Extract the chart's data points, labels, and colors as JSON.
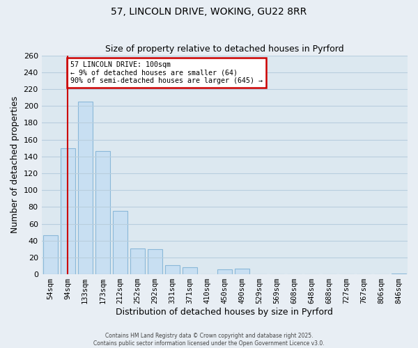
{
  "title": "57, LINCOLN DRIVE, WOKING, GU22 8RR",
  "subtitle": "Size of property relative to detached houses in Pyrford",
  "xlabel": "Distribution of detached houses by size in Pyrford",
  "ylabel": "Number of detached properties",
  "bar_labels": [
    "54sqm",
    "94sqm",
    "133sqm",
    "173sqm",
    "212sqm",
    "252sqm",
    "292sqm",
    "331sqm",
    "371sqm",
    "410sqm",
    "450sqm",
    "490sqm",
    "529sqm",
    "569sqm",
    "608sqm",
    "648sqm",
    "688sqm",
    "727sqm",
    "767sqm",
    "806sqm",
    "846sqm"
  ],
  "bar_values": [
    46,
    150,
    205,
    146,
    75,
    31,
    30,
    11,
    8,
    0,
    6,
    7,
    0,
    0,
    0,
    0,
    0,
    0,
    0,
    0,
    1
  ],
  "bar_color": "#c8dff2",
  "bar_edge_color": "#8ab8d8",
  "vline_x": 1.0,
  "vline_color": "#cc0000",
  "annotation_line1": "57 LINCOLN DRIVE: 100sqm",
  "annotation_line2": "← 9% of detached houses are smaller (64)",
  "annotation_line3": "90% of semi-detached houses are larger (645) →",
  "box_edge_color": "#cc0000",
  "ylim": [
    0,
    260
  ],
  "yticks": [
    0,
    20,
    40,
    60,
    80,
    100,
    120,
    140,
    160,
    180,
    200,
    220,
    240,
    260
  ],
  "footer1": "Contains HM Land Registry data © Crown copyright and database right 2025.",
  "footer2": "Contains public sector information licensed under the Open Government Licence v3.0.",
  "bg_color": "#e8eef4",
  "plot_bg_color": "#dce8f0",
  "grid_color": "#b8cede",
  "title_fontsize": 9.5,
  "axis_label_fontsize": 8,
  "tick_fontsize": 7.5
}
